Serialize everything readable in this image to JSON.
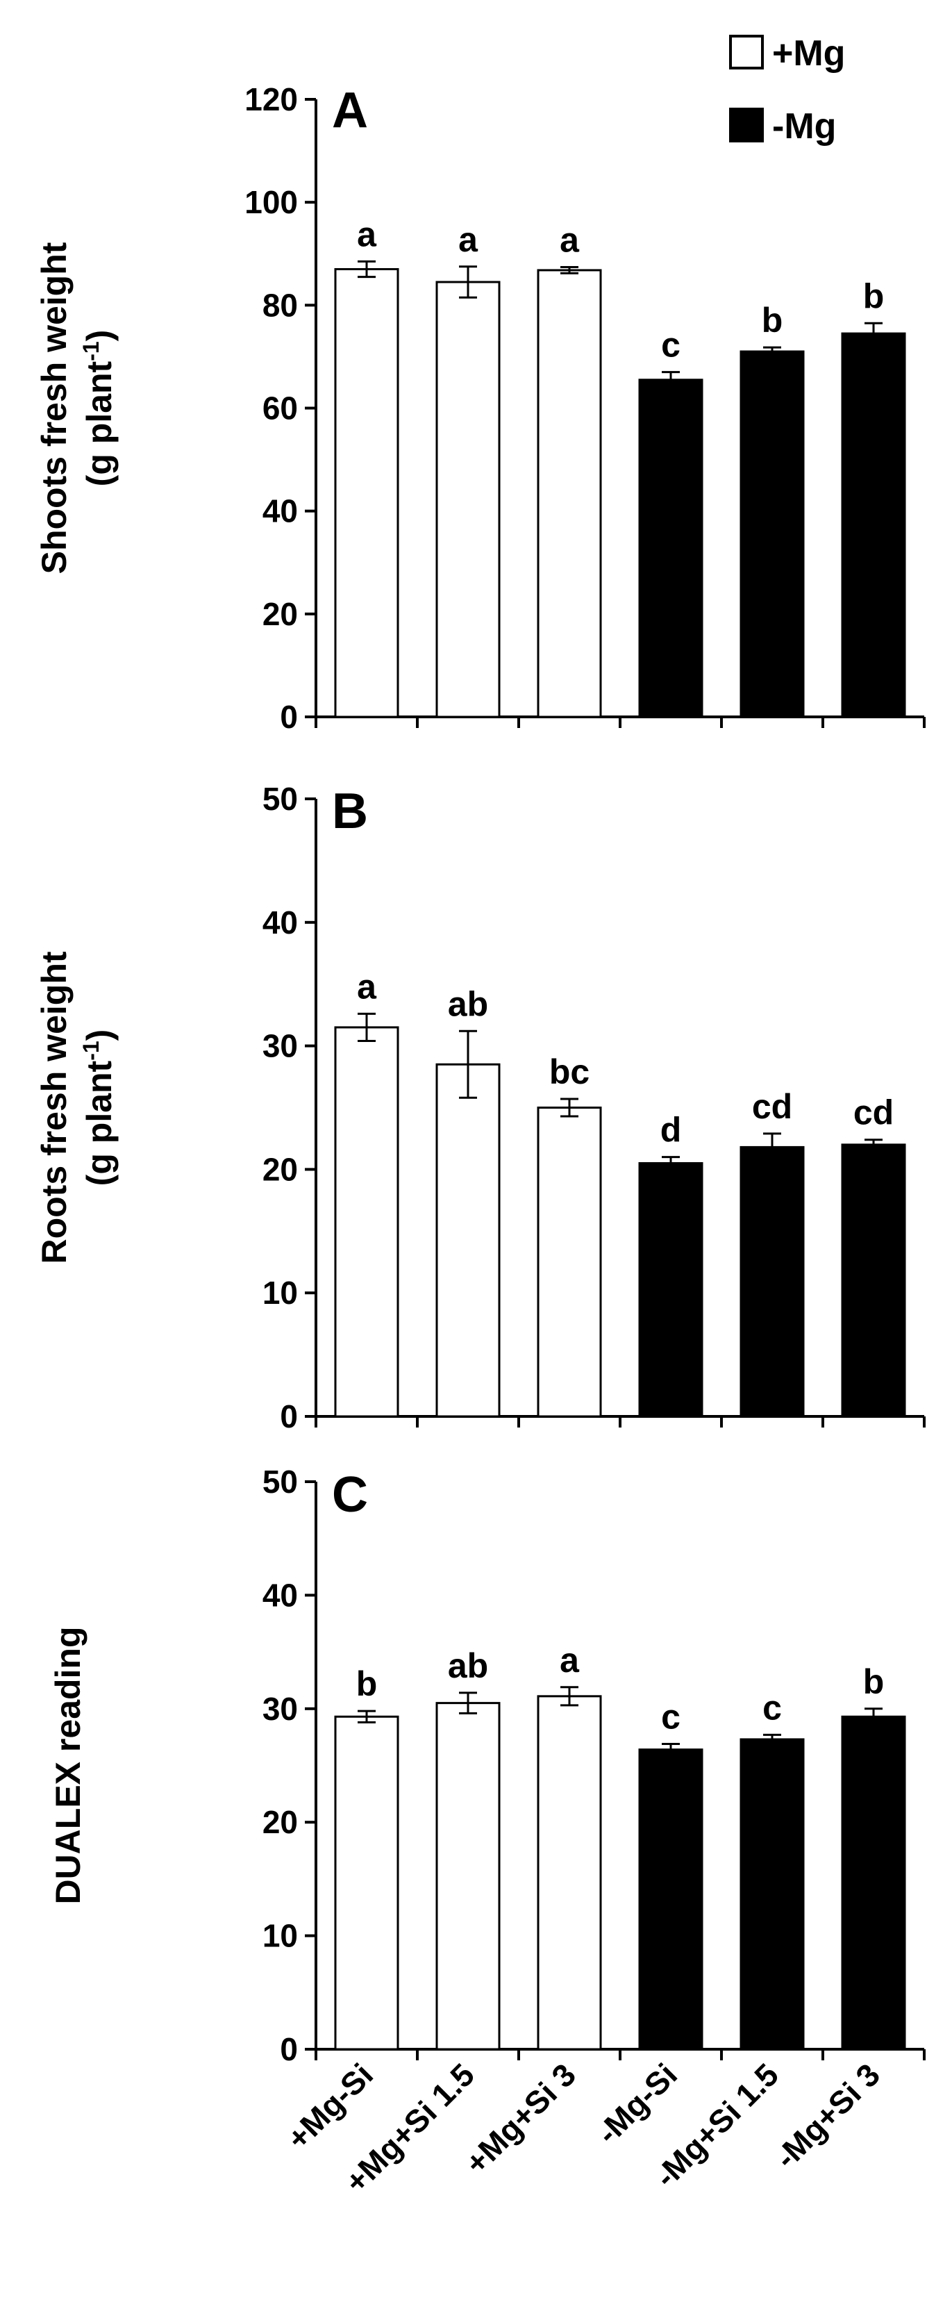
{
  "colors": {
    "plus_mg": "#ffffff",
    "minus_mg": "#000000",
    "axis": "#000000"
  },
  "legend": {
    "position": "top-right",
    "entries": [
      {
        "label": "+Mg",
        "color": "#ffffff"
      },
      {
        "label": "-Mg",
        "color": "#000000"
      }
    ]
  },
  "chart_data": [
    {
      "type": "bar",
      "panel": "A",
      "ylabel_line1": "Shoots fresh weight",
      "ylabel_line2_main": "(g plant",
      "ylabel_line2_sup": "-1",
      "ylabel_line2_end": ")",
      "ylim": [
        0,
        120
      ],
      "yticks": [
        0,
        20,
        40,
        60,
        80,
        100,
        120
      ],
      "grid": false,
      "categories": [
        "+Mg-Si",
        "+Mg+Si 1.5",
        "+Mg+Si 3",
        "-Mg-Si",
        "-Mg+Si 1.5",
        "-Mg+Si 3"
      ],
      "values": [
        87.0,
        84.5,
        86.8,
        65.5,
        71.0,
        74.5
      ],
      "errors": [
        1.5,
        3.0,
        0.6,
        1.5,
        0.8,
        2.0
      ],
      "fills": [
        "#ffffff",
        "#ffffff",
        "#ffffff",
        "#000000",
        "#000000",
        "#000000"
      ],
      "letters": [
        "a",
        "a",
        "a",
        "c",
        "b",
        "b"
      ]
    },
    {
      "type": "bar",
      "panel": "B",
      "ylabel_line1": "Roots fresh weight",
      "ylabel_line2_main": "(g plant",
      "ylabel_line2_sup": "-1",
      "ylabel_line2_end": ")",
      "ylim": [
        0,
        50
      ],
      "yticks": [
        0,
        10,
        20,
        30,
        40,
        50
      ],
      "grid": false,
      "categories": [
        "+Mg-Si",
        "+Mg+Si 1.5",
        "+Mg+Si 3",
        "-Mg-Si",
        "-Mg+Si 1.5",
        "-Mg+Si 3"
      ],
      "values": [
        31.5,
        28.5,
        25.0,
        20.5,
        21.8,
        22.0
      ],
      "errors": [
        1.1,
        2.7,
        0.7,
        0.5,
        1.1,
        0.4
      ],
      "fills": [
        "#ffffff",
        "#ffffff",
        "#ffffff",
        "#000000",
        "#000000",
        "#000000"
      ],
      "letters": [
        "a",
        "ab",
        "bc",
        "d",
        "cd",
        "cd"
      ]
    },
    {
      "type": "bar",
      "panel": "C",
      "ylabel_line1": "DUALEX reading",
      "ylim": [
        0,
        50
      ],
      "yticks": [
        0,
        10,
        20,
        30,
        40,
        50
      ],
      "grid": false,
      "categories": [
        "+Mg-Si",
        "+Mg+Si 1.5",
        "+Mg+Si 3",
        "-Mg-Si",
        "-Mg+Si 1.5",
        "-Mg+Si 3"
      ],
      "values": [
        29.3,
        30.5,
        31.1,
        26.4,
        27.3,
        29.3
      ],
      "errors": [
        0.5,
        0.9,
        0.8,
        0.5,
        0.4,
        0.7
      ],
      "fills": [
        "#ffffff",
        "#ffffff",
        "#ffffff",
        "#000000",
        "#000000",
        "#000000"
      ],
      "letters": [
        "b",
        "ab",
        "a",
        "c",
        "c",
        "b"
      ]
    }
  ]
}
